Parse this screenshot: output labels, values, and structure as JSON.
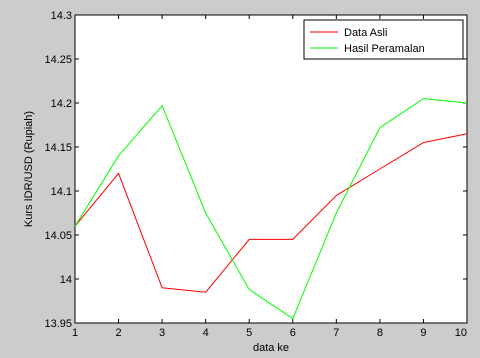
{
  "chart_data": {
    "type": "line",
    "xlabel": "data ke",
    "ylabel": "Kurs IDR/USD (Rupiah)",
    "xlim": [
      1,
      10
    ],
    "ylim": [
      13.95,
      14.3
    ],
    "x_ticks": [
      1,
      2,
      3,
      4,
      5,
      6,
      7,
      8,
      9,
      10
    ],
    "y_ticks": [
      13.95,
      14,
      14.05,
      14.1,
      14.15,
      14.2,
      14.25,
      14.3
    ],
    "y_tick_labels": [
      "13.95",
      "14",
      "14.05",
      "14.1",
      "14.15",
      "14.2",
      "14.25",
      "14.3"
    ],
    "x": [
      1,
      2,
      3,
      4,
      5,
      6,
      7,
      8,
      9,
      10
    ],
    "grid": false,
    "legend_position": "top-right",
    "series": [
      {
        "name": "Data Asli",
        "color": "#ff0000",
        "values": [
          14.06,
          14.12,
          13.99,
          13.985,
          14.045,
          14.045,
          14.095,
          14.125,
          14.155,
          14.165
        ]
      },
      {
        "name": "Hasil Peramalan",
        "color": "#00ff00",
        "values": [
          14.06,
          14.14,
          14.197,
          14.075,
          13.988,
          13.955,
          14.075,
          14.172,
          14.205,
          14.2
        ]
      }
    ]
  }
}
